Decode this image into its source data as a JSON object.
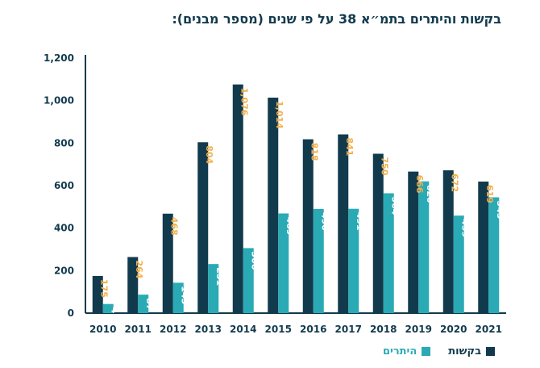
{
  "title": "בקשות והיתרים בתמ״א 38 על פי שנים (מספר מבנים):",
  "colors": {
    "requests": "#123a4d",
    "permits": "#2aaab5",
    "requests_label": "#f2b04a",
    "permits_label": "#ffffff",
    "axis": "#123a4d"
  },
  "legend": {
    "requests": "בקשות",
    "permits": "היתרים"
  },
  "chart_data": {
    "type": "bar",
    "title": "בקשות והיתרים בתמ״א 38 על פי שנים (מספר מבנים):",
    "categories": [
      "2010",
      "2011",
      "2012",
      "2013",
      "2014",
      "2015",
      "2016",
      "2017",
      "2018",
      "2019",
      "2020",
      "2021"
    ],
    "series": [
      {
        "name": "בקשות",
        "values": [
          175,
          264,
          468,
          804,
          1076,
          1014,
          818,
          841,
          750,
          666,
          672,
          619
        ]
      },
      {
        "name": "היתרים",
        "values": [
          43,
          87,
          143,
          231,
          306,
          469,
          490,
          491,
          564,
          620,
          459,
          545
        ]
      }
    ],
    "value_labels": {
      "requests": [
        "175",
        "264",
        "468",
        "804",
        "1,076",
        "1,014",
        "818",
        "841",
        "750",
        "666",
        "672",
        "619"
      ],
      "permits": [
        "43",
        "87",
        "143",
        "231",
        "306",
        "469",
        "490",
        "491",
        "564",
        "620",
        "459",
        "545"
      ]
    },
    "ylim": [
      0,
      1200
    ],
    "yticks": [
      "0",
      "200",
      "400",
      "600",
      "800",
      "1,000",
      "1,200"
    ],
    "ytick_values": [
      0,
      200,
      400,
      600,
      800,
      1000,
      1200
    ],
    "grid": false,
    "legend_position": "bottom-right"
  }
}
